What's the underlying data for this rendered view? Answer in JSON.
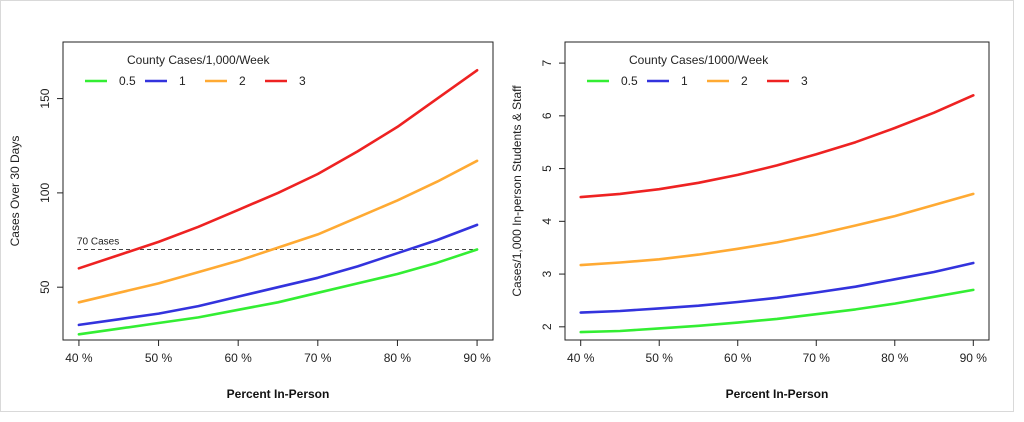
{
  "chart_data": [
    {
      "type": "line",
      "xlabel": "Percent In-Person",
      "ylabel": "Cases Over 30 Days",
      "x": [
        40,
        45,
        50,
        55,
        60,
        65,
        70,
        75,
        80,
        85,
        90
      ],
      "x_tick_labels": [
        "40 %",
        "50 %",
        "60 %",
        "70 %",
        "80 %",
        "90 %"
      ],
      "x_ticks": [
        40,
        50,
        60,
        70,
        80,
        90
      ],
      "y_ticks": [
        50,
        100,
        150
      ],
      "xlim": [
        38,
        92
      ],
      "ylim": [
        22,
        180
      ],
      "legend_title": "County Cases/1,000/Week",
      "legend_placement": "top-left",
      "series": [
        {
          "name": "0.5",
          "color": "#33ee33",
          "values": [
            25,
            28,
            31,
            34,
            38,
            42,
            47,
            52,
            57,
            63,
            70
          ]
        },
        {
          "name": "1",
          "color": "#3333dd",
          "values": [
            30,
            33,
            36,
            40,
            45,
            50,
            55,
            61,
            68,
            75,
            83
          ]
        },
        {
          "name": "2",
          "color": "#ffaa33",
          "values": [
            42,
            47,
            52,
            58,
            64,
            71,
            78,
            87,
            96,
            106,
            117
          ]
        },
        {
          "name": "3",
          "color": "#ee2222",
          "values": [
            60,
            67,
            74,
            82,
            91,
            100,
            110,
            122,
            135,
            150,
            165
          ]
        }
      ],
      "reference_line": {
        "y": 70,
        "label": "70 Cases",
        "color": "#444444"
      }
    },
    {
      "type": "line",
      "xlabel": "Percent In-Person",
      "ylabel": "Cases/1,000 In-person Students & Staff",
      "x": [
        40,
        45,
        50,
        55,
        60,
        65,
        70,
        75,
        80,
        85,
        90
      ],
      "x_tick_labels": [
        "40 %",
        "50 %",
        "60 %",
        "70 %",
        "80 %",
        "90 %"
      ],
      "x_ticks": [
        40,
        50,
        60,
        70,
        80,
        90
      ],
      "y_ticks": [
        2,
        3,
        4,
        5,
        6,
        7
      ],
      "xlim": [
        38,
        92
      ],
      "ylim": [
        1.75,
        7.4
      ],
      "legend_title": "County Cases/1000/Week",
      "legend_placement": "top-left",
      "series": [
        {
          "name": "0.5",
          "color": "#33ee33",
          "values": [
            1.9,
            1.92,
            1.97,
            2.02,
            2.08,
            2.15,
            2.24,
            2.33,
            2.44,
            2.57,
            2.7
          ]
        },
        {
          "name": "1",
          "color": "#3333dd",
          "values": [
            2.27,
            2.3,
            2.35,
            2.4,
            2.47,
            2.55,
            2.65,
            2.76,
            2.9,
            3.04,
            3.21
          ]
        },
        {
          "name": "2",
          "color": "#ffaa33",
          "values": [
            3.17,
            3.22,
            3.28,
            3.37,
            3.48,
            3.6,
            3.75,
            3.92,
            4.1,
            4.31,
            4.52
          ]
        },
        {
          "name": "3",
          "color": "#ee2222",
          "values": [
            4.46,
            4.52,
            4.61,
            4.73,
            4.88,
            5.06,
            5.27,
            5.5,
            5.77,
            6.06,
            6.39
          ]
        }
      ]
    }
  ]
}
